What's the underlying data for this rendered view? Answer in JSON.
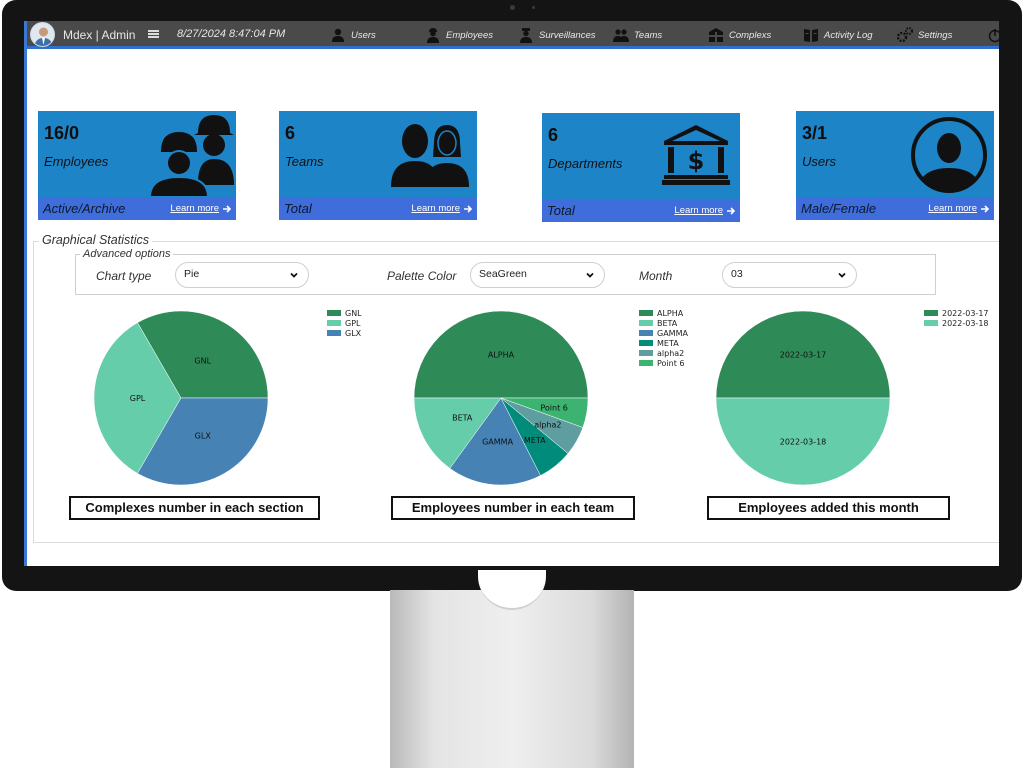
{
  "navbar": {
    "brand": "Mdex | Admin",
    "datetime": "8/27/2024 8:47:04 PM",
    "items": [
      {
        "label": "Users",
        "icon": "user-icon"
      },
      {
        "label": "Employees",
        "icon": "employee-icon"
      },
      {
        "label": "Surveillances",
        "icon": "surveillance-icon"
      },
      {
        "label": "Teams",
        "icon": "teams-icon"
      },
      {
        "label": "Complexs",
        "icon": "complex-icon"
      },
      {
        "label": "Activity Log",
        "icon": "activity-log-icon"
      },
      {
        "label": "Settings",
        "icon": "settings-icon"
      }
    ]
  },
  "cards": [
    {
      "value": "16/0",
      "label": "Employees",
      "footer": "Active/Archive",
      "link": "Learn more",
      "icon": "workers-icon"
    },
    {
      "value": "6",
      "label": "Teams",
      "footer": "Total",
      "link": "Learn more",
      "icon": "team-people-icon"
    },
    {
      "value": "6",
      "label": "Departments",
      "footer": "Total",
      "link": "Learn more",
      "icon": "bank-building-icon"
    },
    {
      "value": "3/1",
      "label": "Users",
      "footer": "Male/Female",
      "link": "Learn more",
      "icon": "user-circle-icon"
    }
  ],
  "stats": {
    "title": "Graphical Statistics",
    "advanced_title": "Advanced options",
    "chart_type_label": "Chart type",
    "chart_type_value": "Pie",
    "palette_label": "Palette Color",
    "palette_value": "SeaGreen",
    "month_label": "Month",
    "month_value": "03"
  },
  "colors": {
    "card_bg": "#1e84c8",
    "card_footer": "#3f6ddc",
    "navbar": "#4a4a4a",
    "accent": "#2f6fd0"
  },
  "chart_data": [
    {
      "type": "pie",
      "title": "Complexes number in each section",
      "labels": [
        "GNL",
        "GPL",
        "GLX"
      ],
      "values": [
        33.3,
        33.3,
        33.3
      ],
      "colors": [
        "#2e8b57",
        "#66cdaa",
        "#4682b4"
      ],
      "legend": "top-right"
    },
    {
      "type": "pie",
      "title": "Employees number in each team",
      "labels": [
        "ALPHA",
        "BETA",
        "GAMMA",
        "META",
        "alpha2",
        "Point 6"
      ],
      "values": [
        50,
        15,
        17.5,
        6.5,
        5.5,
        5.5
      ],
      "colors": [
        "#2e8b57",
        "#66cdaa",
        "#4682b4",
        "#008b7b",
        "#5f9ea0",
        "#3cb371"
      ],
      "legend": "top-right"
    },
    {
      "type": "pie",
      "title": "Employees added this month",
      "labels": [
        "2022-03-17",
        "2022-03-18"
      ],
      "values": [
        50,
        50
      ],
      "colors": [
        "#2e8b57",
        "#66cdaa"
      ],
      "legend": "top-right"
    }
  ]
}
